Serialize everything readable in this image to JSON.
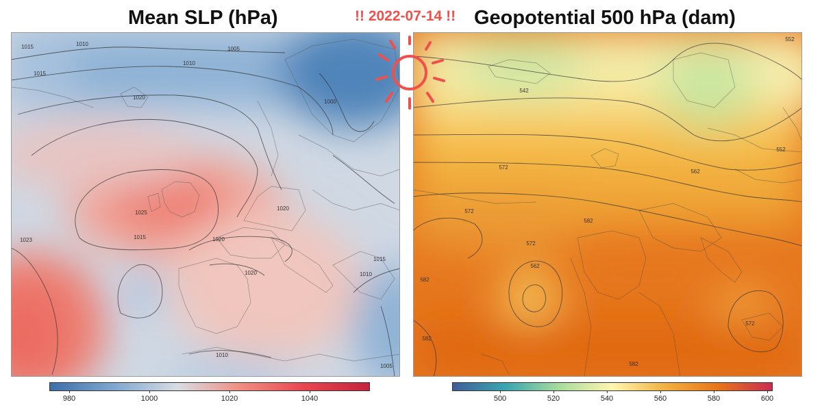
{
  "date_label": "!! 2022-07-14 !!",
  "panels": [
    {
      "title": "Mean SLP (hPa)",
      "colorbar": {
        "colors": [
          "#3d6fa8",
          "#7fa6cf",
          "#d8dde4",
          "#f08c80",
          "#e8464f",
          "#c4243e"
        ],
        "ticks": [
          "980",
          "1000",
          "1020",
          "1040"
        ]
      },
      "contour_labels": [
        "1015",
        "1010",
        "1005",
        "1010",
        "1015",
        "1020",
        "1025",
        "1023",
        "1015",
        "1020",
        "1020",
        "1020",
        "1015",
        "1010",
        "1010",
        "1005",
        "1000"
      ]
    },
    {
      "title": "Geopotential 500 hPa (dam)",
      "colorbar": {
        "colors": [
          "#3f5e9a",
          "#3aa6b0",
          "#a8dc9c",
          "#fff6b0",
          "#f2b040",
          "#e8741a",
          "#c92e52"
        ],
        "ticks": [
          "500",
          "520",
          "540",
          "560",
          "580",
          "600"
        ]
      },
      "contour_labels": [
        "552",
        "542",
        "552",
        "562",
        "572",
        "572",
        "582",
        "572",
        "562",
        "582",
        "582",
        "572",
        "582"
      ]
    }
  ],
  "colors": {
    "accent_red": "#f0504c"
  }
}
